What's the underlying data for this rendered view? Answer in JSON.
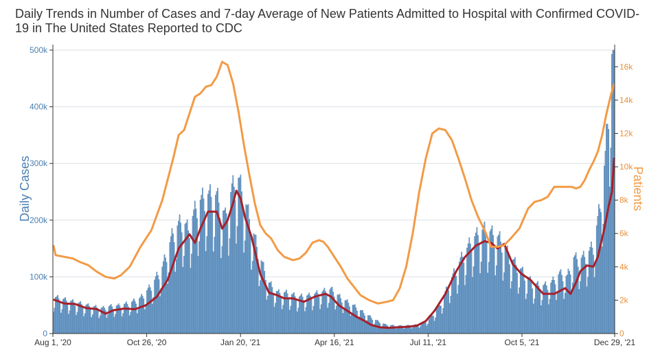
{
  "chart_data": {
    "type": "bar+line",
    "title": "Daily Trends in Number of Cases and 7-day Average of New Patients Admitted to Hospital with Confirmed COVID-19 in The United States Reported to CDC",
    "ylabel_left": "Daily Cases",
    "ylabel_right": "Patients",
    "ylim_left": [
      0,
      500000
    ],
    "ylim_right": [
      0,
      17000
    ],
    "yticks_left": [
      {
        "value": 0,
        "label": "0"
      },
      {
        "value": 100000,
        "label": "100k"
      },
      {
        "value": 200000,
        "label": "200k"
      },
      {
        "value": 300000,
        "label": "300k"
      },
      {
        "value": 400000,
        "label": "400k"
      },
      {
        "value": 500000,
        "label": "500k"
      }
    ],
    "yticks_right": [
      {
        "value": 0,
        "label": "0"
      },
      {
        "value": 2000,
        "label": "2k"
      },
      {
        "value": 4000,
        "label": "4k"
      },
      {
        "value": 6000,
        "label": "6k"
      },
      {
        "value": 8000,
        "label": "8k"
      },
      {
        "value": 10000,
        "label": "10k"
      },
      {
        "value": 12000,
        "label": "12k"
      },
      {
        "value": 14000,
        "label": "14k"
      },
      {
        "value": 16000,
        "label": "16k"
      }
    ],
    "x_day_count": 516,
    "xticks": [
      {
        "day": 0,
        "label": "Aug 1, '20"
      },
      {
        "day": 86,
        "label": "Oct 26, '20"
      },
      {
        "day": 172,
        "label": "Jan 20, '21"
      },
      {
        "day": 258,
        "label": "Apr 16, '21"
      },
      {
        "day": 344,
        "label": "Jul 11, '21"
      },
      {
        "day": 430,
        "label": "Oct 5, '21"
      },
      {
        "day": 515,
        "label": "Dec 29, '21"
      }
    ],
    "series": [
      {
        "name": "Daily Cases",
        "kind": "bar",
        "axis": "left",
        "color": "#6f9fcc",
        "edge_color": "#3c6e9e",
        "weekly_pattern": [
          0.66,
          0.78,
          1.12,
          1.15,
          1.2,
          1.1,
          0.99
        ],
        "knots_day_value": [
          [
            0,
            58000
          ],
          [
            14,
            52000
          ],
          [
            30,
            45000
          ],
          [
            38,
            42000
          ],
          [
            45,
            40000
          ],
          [
            52,
            43000
          ],
          [
            60,
            44000
          ],
          [
            70,
            48000
          ],
          [
            80,
            56000
          ],
          [
            90,
            76000
          ],
          [
            100,
            105000
          ],
          [
            110,
            160000
          ],
          [
            118,
            180000
          ],
          [
            124,
            165000
          ],
          [
            132,
            205000
          ],
          [
            140,
            220000
          ],
          [
            150,
            218000
          ],
          [
            158,
            185000
          ],
          [
            164,
            230000
          ],
          [
            170,
            245000
          ],
          [
            176,
            210000
          ],
          [
            182,
            170000
          ],
          [
            190,
            120000
          ],
          [
            198,
            80000
          ],
          [
            206,
            65000
          ],
          [
            215,
            64000
          ],
          [
            225,
            58000
          ],
          [
            235,
            60000
          ],
          [
            245,
            65000
          ],
          [
            255,
            70000
          ],
          [
            265,
            55000
          ],
          [
            275,
            45000
          ],
          [
            285,
            33000
          ],
          [
            295,
            22000
          ],
          [
            305,
            14000
          ],
          [
            315,
            12000
          ],
          [
            325,
            12500
          ],
          [
            335,
            14000
          ],
          [
            345,
            22000
          ],
          [
            355,
            45000
          ],
          [
            365,
            85000
          ],
          [
            375,
            120000
          ],
          [
            385,
            150000
          ],
          [
            395,
            165000
          ],
          [
            402,
            160000
          ],
          [
            410,
            150000
          ],
          [
            420,
            120000
          ],
          [
            430,
            100000
          ],
          [
            440,
            80000
          ],
          [
            448,
            75000
          ],
          [
            456,
            78000
          ],
          [
            465,
            95000
          ],
          [
            472,
            90000
          ],
          [
            478,
            120000
          ],
          [
            484,
            118000
          ],
          [
            490,
            125000
          ],
          [
            496,
            140000
          ],
          [
            502,
            200000
          ],
          [
            507,
            280000
          ],
          [
            512,
            420000
          ],
          [
            515,
            480000
          ]
        ]
      },
      {
        "name": "7-day average (cases)",
        "kind": "line",
        "axis": "left",
        "color": "#a6202a",
        "knots_day_value": [
          [
            0,
            60000
          ],
          [
            10,
            53000
          ],
          [
            20,
            52000
          ],
          [
            30,
            45000
          ],
          [
            40,
            43000
          ],
          [
            48,
            35000
          ],
          [
            55,
            41000
          ],
          [
            65,
            44000
          ],
          [
            75,
            43000
          ],
          [
            85,
            50000
          ],
          [
            95,
            65000
          ],
          [
            105,
            95000
          ],
          [
            115,
            150000
          ],
          [
            125,
            175000
          ],
          [
            130,
            160000
          ],
          [
            135,
            185000
          ],
          [
            142,
            215000
          ],
          [
            150,
            215000
          ],
          [
            155,
            185000
          ],
          [
            160,
            200000
          ],
          [
            165,
            230000
          ],
          [
            168,
            252000
          ],
          [
            172,
            238000
          ],
          [
            176,
            205000
          ],
          [
            182,
            170000
          ],
          [
            190,
            105000
          ],
          [
            198,
            72000
          ],
          [
            205,
            68000
          ],
          [
            212,
            62000
          ],
          [
            220,
            62000
          ],
          [
            230,
            56000
          ],
          [
            240,
            65000
          ],
          [
            250,
            70000
          ],
          [
            255,
            65000
          ],
          [
            262,
            50000
          ],
          [
            270,
            40000
          ],
          [
            278,
            30000
          ],
          [
            286,
            22000
          ],
          [
            292,
            15000
          ],
          [
            300,
            11000
          ],
          [
            308,
            10000
          ],
          [
            316,
            11000
          ],
          [
            326,
            12000
          ],
          [
            334,
            14000
          ],
          [
            342,
            22000
          ],
          [
            350,
            40000
          ],
          [
            360,
            70000
          ],
          [
            370,
            110000
          ],
          [
            378,
            135000
          ],
          [
            388,
            155000
          ],
          [
            396,
            163000
          ],
          [
            402,
            160000
          ],
          [
            408,
            150000
          ],
          [
            414,
            158000
          ],
          [
            422,
            122000
          ],
          [
            430,
            105000
          ],
          [
            438,
            95000
          ],
          [
            445,
            80000
          ],
          [
            450,
            70000
          ],
          [
            460,
            70000
          ],
          [
            470,
            80000
          ],
          [
            475,
            70000
          ],
          [
            480,
            90000
          ],
          [
            484,
            110000
          ],
          [
            490,
            120000
          ],
          [
            496,
            118000
          ],
          [
            500,
            135000
          ],
          [
            503,
            160000
          ],
          [
            506,
            185000
          ],
          [
            510,
            225000
          ],
          [
            513,
            250000
          ],
          [
            515,
            310000
          ]
        ]
      },
      {
        "name": "Patients",
        "kind": "line",
        "axis": "right",
        "color": "#f39a45",
        "knots_day_value": [
          [
            0,
            5300
          ],
          [
            2,
            4700
          ],
          [
            10,
            4600
          ],
          [
            18,
            4500
          ],
          [
            24,
            4300
          ],
          [
            32,
            4100
          ],
          [
            40,
            3700
          ],
          [
            48,
            3400
          ],
          [
            56,
            3300
          ],
          [
            62,
            3500
          ],
          [
            70,
            4000
          ],
          [
            80,
            5200
          ],
          [
            90,
            6200
          ],
          [
            100,
            8000
          ],
          [
            110,
            10500
          ],
          [
            115,
            11900
          ],
          [
            120,
            12200
          ],
          [
            125,
            13200
          ],
          [
            130,
            14200
          ],
          [
            135,
            14400
          ],
          [
            140,
            14800
          ],
          [
            145,
            14900
          ],
          [
            150,
            15400
          ],
          [
            155,
            16300
          ],
          [
            160,
            16100
          ],
          [
            165,
            15000
          ],
          [
            170,
            13300
          ],
          [
            175,
            11300
          ],
          [
            180,
            9500
          ],
          [
            185,
            7800
          ],
          [
            190,
            6500
          ],
          [
            195,
            6000
          ],
          [
            200,
            5700
          ],
          [
            206,
            5000
          ],
          [
            212,
            4600
          ],
          [
            220,
            4400
          ],
          [
            226,
            4500
          ],
          [
            232,
            4850
          ],
          [
            238,
            5450
          ],
          [
            244,
            5600
          ],
          [
            248,
            5500
          ],
          [
            252,
            5200
          ],
          [
            258,
            4600
          ],
          [
            264,
            4000
          ],
          [
            270,
            3300
          ],
          [
            276,
            2800
          ],
          [
            282,
            2300
          ],
          [
            290,
            2000
          ],
          [
            298,
            1800
          ],
          [
            306,
            1900
          ],
          [
            312,
            2000
          ],
          [
            318,
            2700
          ],
          [
            324,
            4000
          ],
          [
            330,
            6000
          ],
          [
            336,
            8500
          ],
          [
            342,
            10500
          ],
          [
            348,
            12000
          ],
          [
            354,
            12300
          ],
          [
            360,
            12200
          ],
          [
            366,
            11600
          ],
          [
            372,
            10500
          ],
          [
            378,
            9300
          ],
          [
            384,
            8000
          ],
          [
            390,
            7000
          ],
          [
            396,
            6200
          ],
          [
            402,
            5200
          ],
          [
            408,
            5200
          ],
          [
            414,
            5300
          ],
          [
            420,
            5700
          ],
          [
            428,
            6300
          ],
          [
            436,
            7500
          ],
          [
            442,
            7900
          ],
          [
            448,
            8000
          ],
          [
            454,
            8200
          ],
          [
            460,
            8800
          ],
          [
            466,
            8800
          ],
          [
            471,
            8800
          ],
          [
            476,
            8800
          ],
          [
            480,
            8700
          ],
          [
            484,
            8800
          ],
          [
            488,
            9200
          ],
          [
            492,
            9800
          ],
          [
            496,
            10300
          ],
          [
            500,
            10900
          ],
          [
            504,
            11900
          ],
          [
            508,
            13200
          ],
          [
            512,
            14300
          ],
          [
            515,
            15000
          ]
        ]
      }
    ]
  }
}
